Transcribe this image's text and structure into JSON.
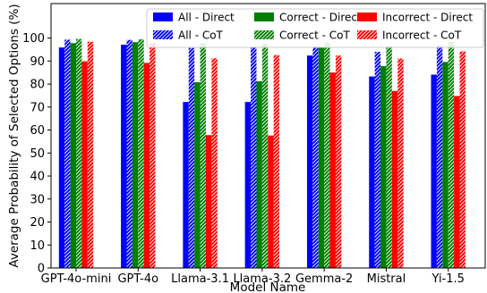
{
  "chart_data": {
    "type": "bar",
    "xlabel": "Model Name",
    "ylabel": "Average Probability of Selected Options (%)",
    "ylim": [
      0,
      115
    ],
    "yticks": [
      0,
      10,
      20,
      30,
      40,
      50,
      60,
      70,
      80,
      90,
      100
    ],
    "grid": false,
    "legend_position": "top-right",
    "categories": [
      "GPT-4o-mini",
      "GPT-4o",
      "Llama-3.1",
      "Llama-3.2",
      "Gemma-2",
      "Mistral",
      "Yi-1.5"
    ],
    "series": [
      {
        "name": "All - Direct",
        "color": "#0000ff",
        "hatch": false,
        "values": [
          95.9,
          97.1,
          72.2,
          72.2,
          92.4,
          83.3,
          84.1
        ]
      },
      {
        "name": "All - CoT",
        "color": "#0000ff",
        "hatch": true,
        "values": [
          99.3,
          99.2,
          95.7,
          96.2,
          96.4,
          94.0,
          96.7
        ]
      },
      {
        "name": "Correct - Direct",
        "color": "#007f00",
        "hatch": false,
        "values": [
          97.8,
          98.2,
          80.8,
          81.2,
          95.9,
          87.8,
          89.6
        ]
      },
      {
        "name": "Correct - CoT",
        "color": "#007f00",
        "hatch": true,
        "values": [
          99.6,
          99.5,
          97.6,
          97.7,
          98.0,
          96.4,
          98.3
        ]
      },
      {
        "name": "Incorrect - Direct",
        "color": "#ff0000",
        "hatch": false,
        "values": [
          89.9,
          89.2,
          57.8,
          57.6,
          85.0,
          77.0,
          74.8
        ]
      },
      {
        "name": "Incorrect - CoT",
        "color": "#ff0000",
        "hatch": true,
        "values": [
          98.4,
          97.8,
          91.2,
          92.6,
          92.4,
          91.1,
          94.2
        ]
      }
    ]
  }
}
